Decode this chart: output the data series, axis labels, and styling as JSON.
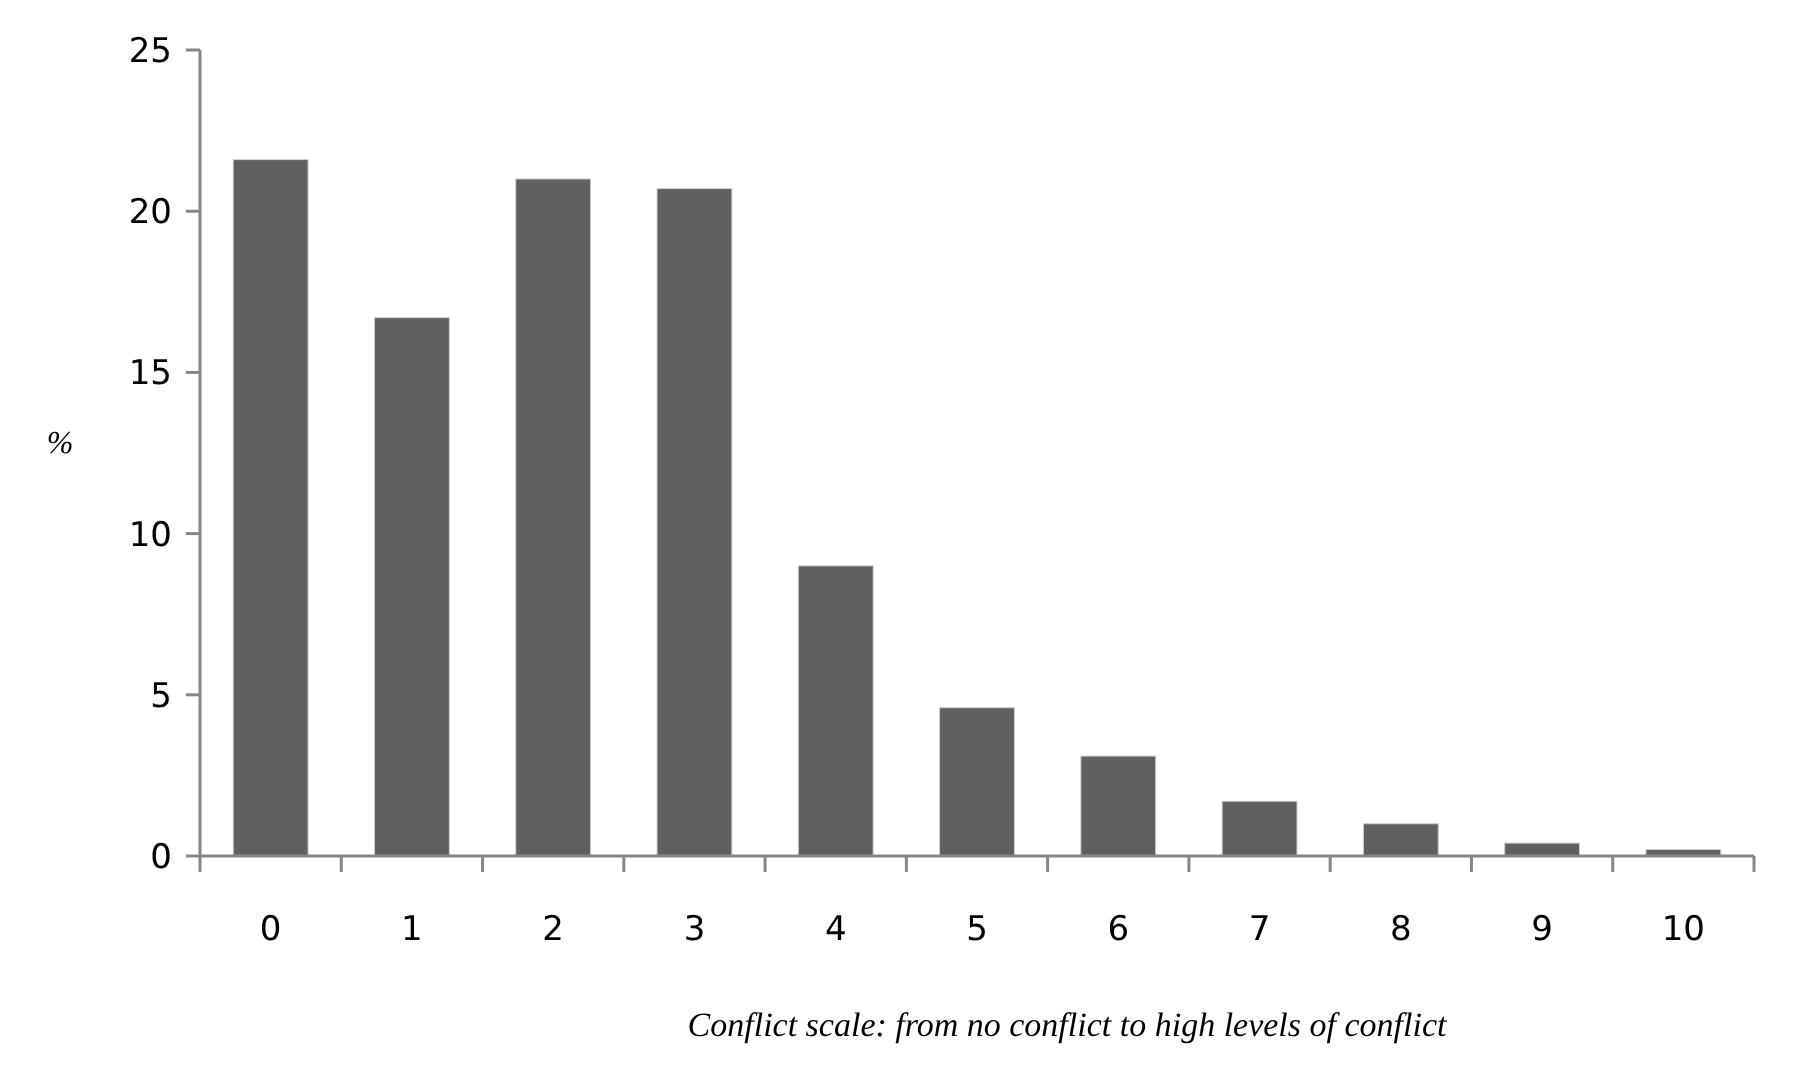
{
  "chart_data": {
    "type": "bar",
    "xlabel": "Conflict scale: from no conflict to high levels of conflict",
    "ylabel": "%",
    "categories": [
      "0",
      "1",
      "2",
      "3",
      "4",
      "5",
      "6",
      "7",
      "8",
      "9",
      "10"
    ],
    "values": [
      21.6,
      16.7,
      21.0,
      20.7,
      9.0,
      4.6,
      3.1,
      1.7,
      1.0,
      0.4,
      0.2
    ],
    "color": "#606060",
    "ylim": [
      0,
      25
    ],
    "yticks": [
      0,
      5,
      10,
      15,
      20,
      25
    ]
  }
}
